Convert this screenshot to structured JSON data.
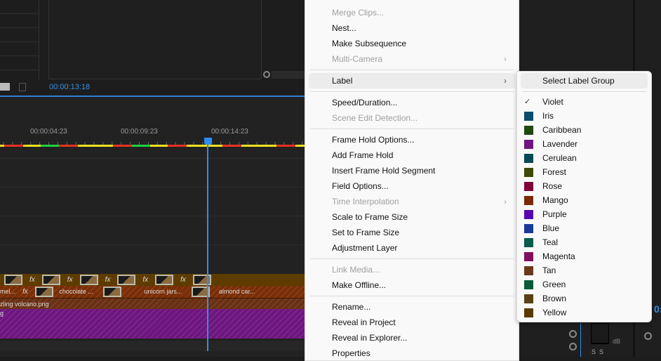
{
  "source_monitor": {
    "timecode": "00:00:13:18"
  },
  "timeline": {
    "ruler_labels": [
      "00:00:04:23",
      "00:00:09:23",
      "00:00:14:23"
    ],
    "clips_v3": [
      "fx",
      "fx",
      "fx",
      "fx",
      "fx",
      "fx"
    ],
    "clips_v2": [
      "mel...",
      "chocolate ...",
      "unicorn jars...",
      "almond car..."
    ],
    "clip_v1": "zling volcano.png",
    "clip_purple": "g"
  },
  "right_panel": {
    "db_label": "dB",
    "solo_labels": [
      "S",
      "S"
    ],
    "timecode_partial": "0:"
  },
  "context_menu": {
    "items": [
      {
        "label": "Merge Clips...",
        "disabled": true
      },
      {
        "label": "Nest..."
      },
      {
        "label": "Make Subsequence"
      },
      {
        "label": "Multi-Camera",
        "disabled": true,
        "submenu": true
      },
      {
        "sep": true
      },
      {
        "label": "Label",
        "submenu": true,
        "highlighted": true
      },
      {
        "sep": true
      },
      {
        "label": "Speed/Duration..."
      },
      {
        "label": "Scene Edit Detection...",
        "disabled": true
      },
      {
        "sep": true
      },
      {
        "label": "Frame Hold Options..."
      },
      {
        "label": "Add Frame Hold"
      },
      {
        "label": "Insert Frame Hold Segment"
      },
      {
        "label": "Field Options..."
      },
      {
        "label": "Time Interpolation",
        "disabled": true,
        "submenu": true
      },
      {
        "label": "Scale to Frame Size"
      },
      {
        "label": "Set to Frame Size"
      },
      {
        "label": "Adjustment Layer"
      },
      {
        "sep": true
      },
      {
        "label": "Link Media...",
        "disabled": true
      },
      {
        "label": "Make Offline..."
      },
      {
        "sep": true
      },
      {
        "label": "Rename..."
      },
      {
        "label": "Reveal in Project"
      },
      {
        "label": "Reveal in Explorer..."
      },
      {
        "label": "Properties"
      }
    ]
  },
  "label_submenu": {
    "header": "Select Label Group",
    "selected": "Violet",
    "labels": [
      {
        "name": "Violet",
        "color": null,
        "checked": true
      },
      {
        "name": "Iris",
        "color": "#0c4c6c"
      },
      {
        "name": "Caribbean",
        "color": "#1f4a10"
      },
      {
        "name": "Lavender",
        "color": "#6e1680"
      },
      {
        "name": "Cerulean",
        "color": "#074a52"
      },
      {
        "name": "Forest",
        "color": "#3f4a0a"
      },
      {
        "name": "Rose",
        "color": "#80023a"
      },
      {
        "name": "Mango",
        "color": "#7a2a06"
      },
      {
        "name": "Purple",
        "color": "#5a06b0"
      },
      {
        "name": "Blue",
        "color": "#1a3a9a"
      },
      {
        "name": "Teal",
        "color": "#0a5a50"
      },
      {
        "name": "Magenta",
        "color": "#801060"
      },
      {
        "name": "Tan",
        "color": "#6a3a1a"
      },
      {
        "name": "Green",
        "color": "#0a5a3a"
      },
      {
        "name": "Brown",
        "color": "#5a4018"
      },
      {
        "name": "Yellow",
        "color": "#5a3a00"
      }
    ]
  }
}
